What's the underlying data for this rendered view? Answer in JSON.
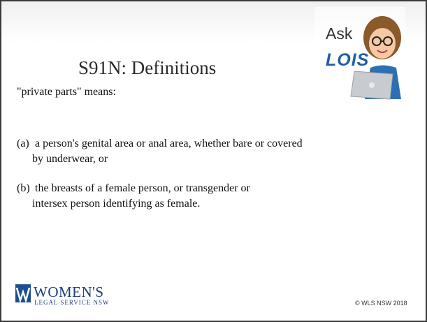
{
  "header": {
    "title": "S91N: Definitions",
    "logo": {
      "line1": "Ask",
      "line2": "LOIS"
    }
  },
  "body": {
    "intro": "\"private parts\" means:",
    "items": [
      {
        "marker": "(a)",
        "lines": [
          "a person's genital area or anal area, whether bare or covered",
          "by underwear, or"
        ]
      },
      {
        "marker": "(b)",
        "lines": [
          "the breasts of a female person, or transgender or",
          "intersex person identifying as female."
        ]
      }
    ]
  },
  "footer": {
    "organization": {
      "name": "WOMEN'S",
      "subtitle": "LEGAL SERVICE NSW"
    },
    "copyright": "© WLS NSW 2018"
  }
}
